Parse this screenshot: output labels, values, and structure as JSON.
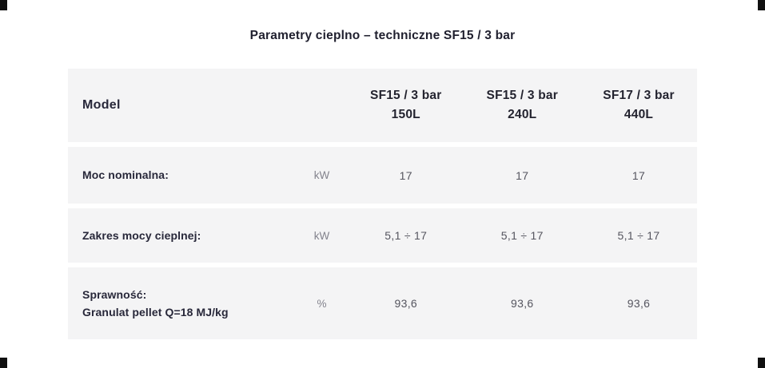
{
  "title": "Parametry cieplno – techniczne SF15 / 3 bar",
  "table": {
    "header": {
      "model_label": "Model",
      "unit_label": "",
      "columns": [
        {
          "line1": "SF15 / 3 bar",
          "line2": "150L"
        },
        {
          "line1": "SF15 / 3 bar",
          "line2": "240L"
        },
        {
          "line1": "SF17 / 3 bar",
          "line2": "440L"
        }
      ]
    },
    "rows": [
      {
        "label": "Moc nominalna:",
        "unit": "kW",
        "values": [
          "17",
          "17",
          "17"
        ]
      },
      {
        "label": "Zakres mocy cieplnej:",
        "unit": "kW",
        "values": [
          "5,1 ÷ 17",
          "5,1 ÷ 17",
          "5,1 ÷ 17"
        ]
      },
      {
        "label": "Sprawność:",
        "label2": "Granulat pellet Q=18 MJ/kg",
        "unit": "%",
        "values": [
          "93,6",
          "93,6",
          "93,6"
        ]
      }
    ]
  }
}
